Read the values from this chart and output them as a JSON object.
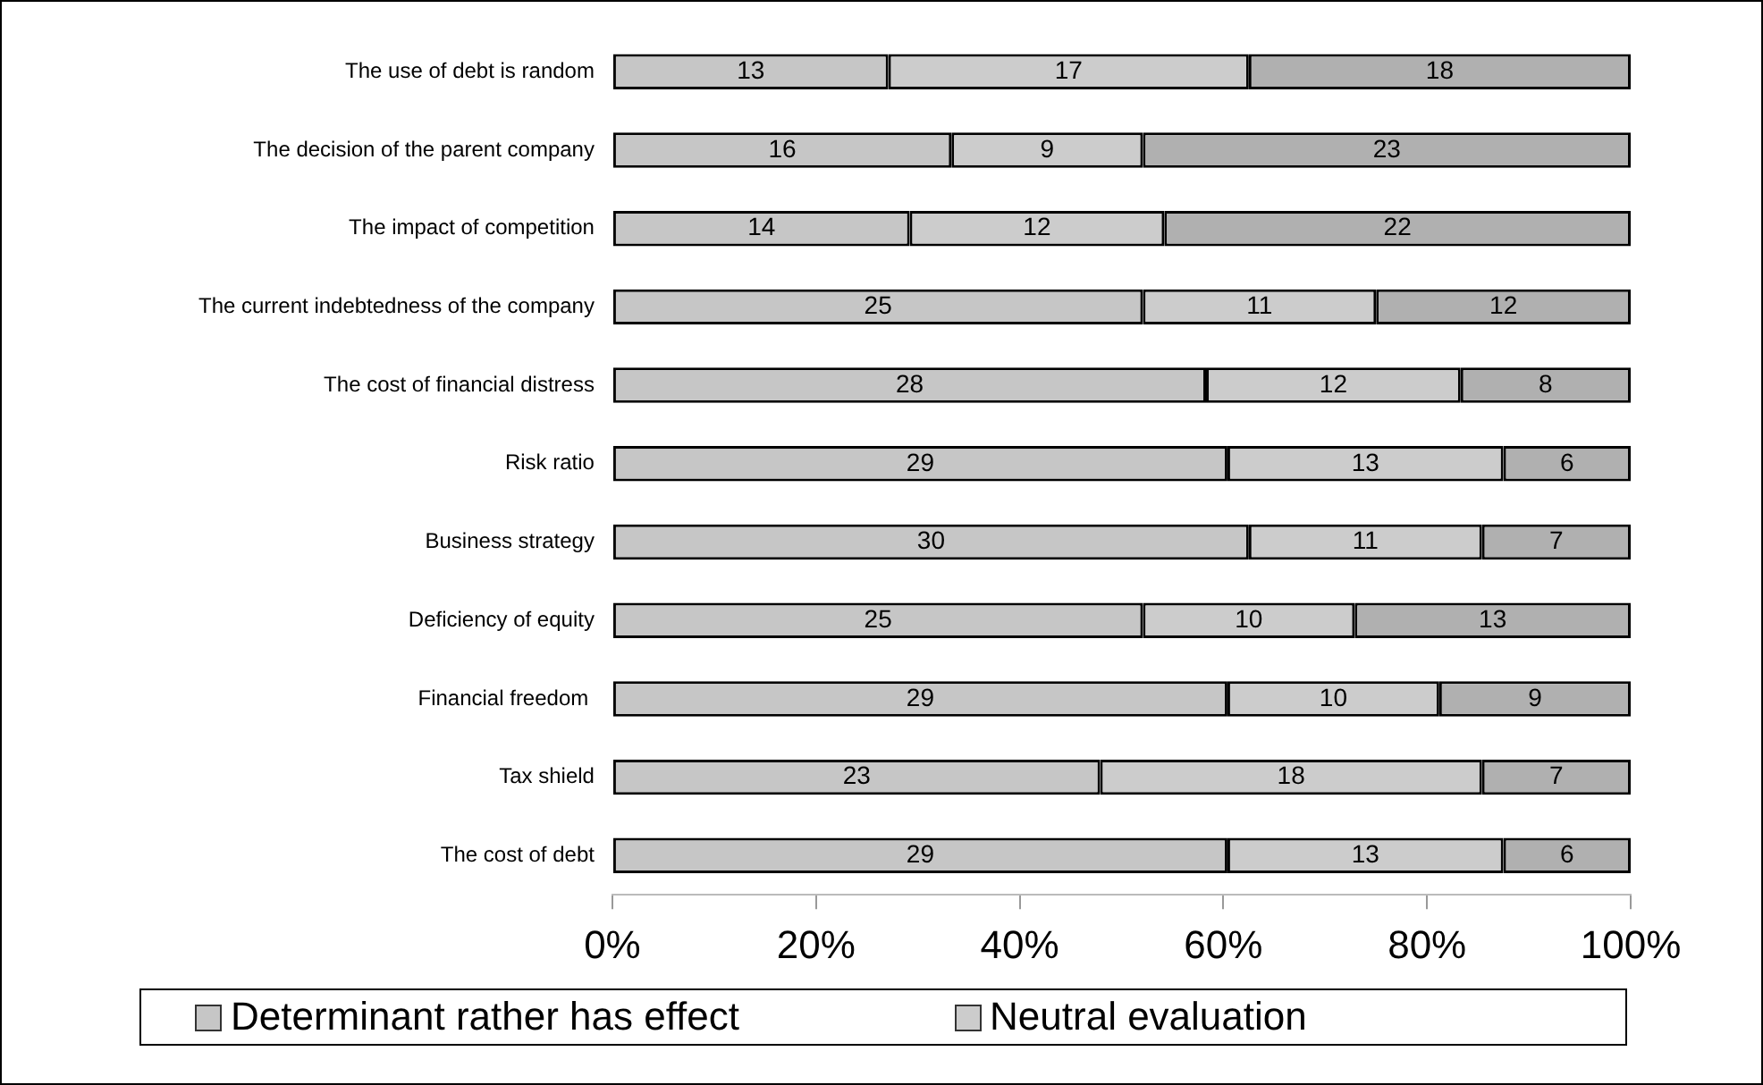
{
  "chart_data": {
    "type": "bar",
    "orientation": "horizontal",
    "stacked": true,
    "legend": "bottom",
    "grid": false,
    "categories": [
      "The use of debt is random",
      "The decision of the parent company",
      "The impact of competition",
      "The current indebtedness of the company",
      "The cost of financial distress",
      "Risk ratio",
      "Business strategy",
      "Deficiency of equity",
      "Financial freedom ",
      "Tax shield",
      "The cost of debt"
    ],
    "series": [
      {
        "name": "Determinant rather has effect",
        "color": "#c6c6c6",
        "values": [
          27.1,
          33.3,
          29.2,
          52.1,
          58.3,
          60.4,
          62.5,
          52.1,
          60.4,
          47.9,
          60.4
        ]
      },
      {
        "name": "Neutral evaluation",
        "color": "#cccccc",
        "values": [
          35.4,
          18.8,
          25.0,
          22.9,
          25.0,
          27.1,
          22.9,
          20.8,
          20.8,
          37.5,
          27.1
        ]
      },
      {
        "color": "#b0b0b0",
        "values": [
          37.5,
          47.9,
          45.8,
          25.0,
          16.7,
          12.5,
          14.6,
          27.1,
          18.8,
          14.6,
          12.5
        ]
      }
    ],
    "xlim": [
      0,
      100
    ],
    "xticks": [
      {
        "value": 0,
        "label": "0%"
      },
      {
        "value": 20,
        "label": "20%"
      },
      {
        "value": 40,
        "label": "40%"
      },
      {
        "value": 60,
        "label": "60%"
      },
      {
        "value": 80,
        "label": "80%"
      },
      {
        "value": 100,
        "label": "100%"
      }
    ],
    "annotations": [
      "13",
      "17",
      "18",
      "16",
      "9",
      "23",
      "14",
      "12",
      "22",
      "25",
      "11",
      "12",
      "28",
      "12",
      "8",
      "29",
      "13",
      "6",
      "30",
      "11",
      "7",
      "25",
      "10",
      "13",
      "29",
      "10",
      "9",
      "23",
      "18",
      "7",
      "29",
      "13",
      "6"
    ]
  }
}
